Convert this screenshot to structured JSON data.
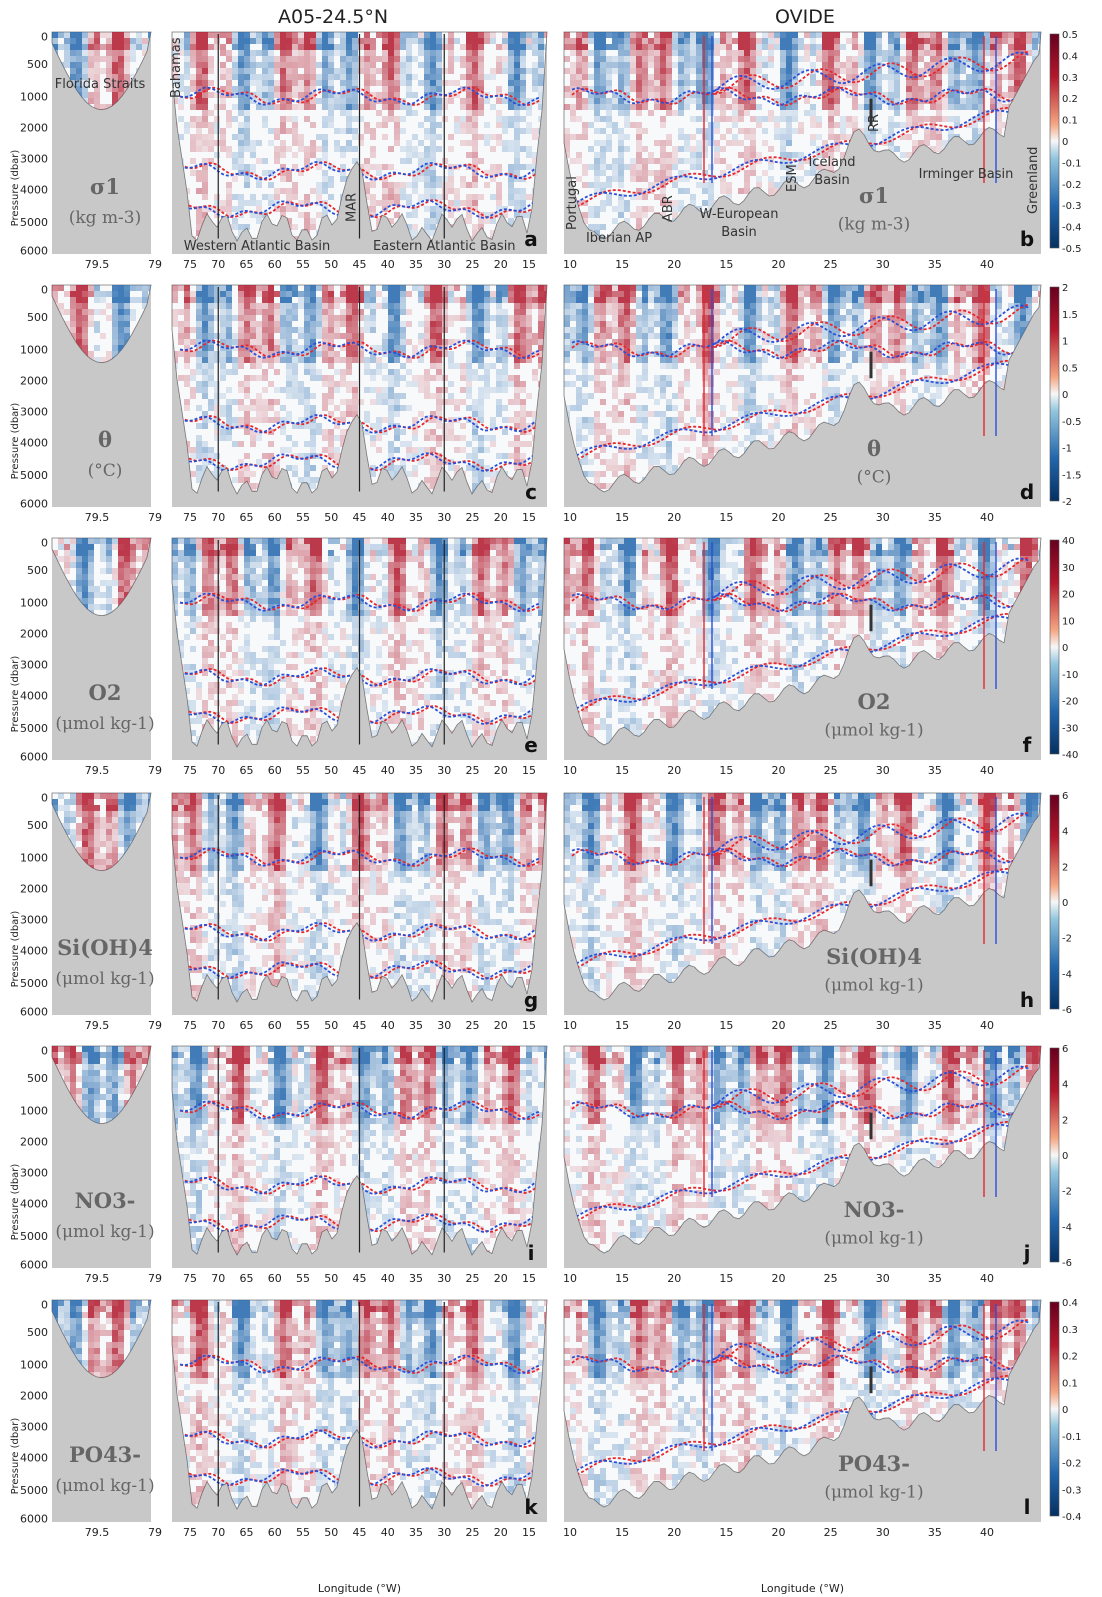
{
  "titles": {
    "left": "A05-24.5°N",
    "right": "OVIDE"
  },
  "axis_label": "Pressure (dbar)",
  "x_axis_title": "Longitude (°W)",
  "ticks": {
    "pressure": [
      "0",
      "500",
      "1000",
      "2000",
      "3000",
      "4000",
      "5000",
      "6000"
    ],
    "florida": [
      "79.5",
      "79"
    ],
    "a05": [
      "75",
      "70",
      "65",
      "60",
      "55",
      "50",
      "45",
      "40",
      "35",
      "30",
      "25",
      "20",
      "15"
    ],
    "ovide": [
      "10",
      "15",
      "20",
      "15",
      "20",
      "25",
      "30",
      "35",
      "40"
    ]
  },
  "annotations": {
    "florida": "Florida Straits",
    "bahamas": "Bahamas",
    "mar": "MAR",
    "western": "Western Atlantic Basin",
    "eastern": "Eastern Atlantic Basin",
    "portugal": "Portugal",
    "iberian": "Iberian AP",
    "abr": "ABR",
    "weuro": "W-European",
    "weuro2": "Basin",
    "esm": "ESM",
    "iceland": "Iceland",
    "iceland2": "Basin",
    "rr": "RR",
    "irminger": "Irminger Basin",
    "greenland": "Greenland"
  },
  "rows": [
    {
      "letter_a05": "a",
      "letter_ovide": "b",
      "var": "σ1",
      "unit": "(kg m-3)",
      "colorbar": [
        "0.5",
        "0.4",
        "0.3",
        "0.2",
        "0.1",
        "0",
        "-0.1",
        "-0.2",
        "-0.3",
        "-0.4",
        "-0.5"
      ]
    },
    {
      "letter_a05": "c",
      "letter_ovide": "d",
      "var": "θ",
      "unit": "(°C)",
      "colorbar": [
        "2",
        "1.5",
        "1",
        "0.5",
        "0",
        "-0.5",
        "-1",
        "-1.5",
        "-2"
      ]
    },
    {
      "letter_a05": "e",
      "letter_ovide": "f",
      "var": "O2",
      "unit": "(μmol kg-1)",
      "colorbar": [
        "40",
        "30",
        "20",
        "10",
        "0",
        "-10",
        "-20",
        "-30",
        "-40"
      ]
    },
    {
      "letter_a05": "g",
      "letter_ovide": "h",
      "var": "Si(OH)4",
      "unit": "(μmol kg-1)",
      "colorbar": [
        "6",
        "4",
        "2",
        "0",
        "-2",
        "-4",
        "-6"
      ]
    },
    {
      "letter_a05": "i",
      "letter_ovide": "j",
      "var": "NO3-",
      "unit": "(μmol kg-1)",
      "colorbar": [
        "6",
        "4",
        "2",
        "0",
        "-2",
        "-4",
        "-6"
      ]
    },
    {
      "letter_a05": "k",
      "letter_ovide": "l",
      "var": "PO43-",
      "unit": "(μmol kg-1)",
      "colorbar": [
        "0.4",
        "0.3",
        "0.2",
        "0.1",
        "0",
        "-0.1",
        "-0.2",
        "-0.3",
        "-0.4"
      ]
    }
  ],
  "colors": {
    "positive": "#b2182b",
    "negative": "#2166ac",
    "bathymetry": "#c8c8c8",
    "contour_red": "#e8262b",
    "contour_blue": "#2a4fd8"
  },
  "chart_data": {
    "type": "heatmap",
    "title": "",
    "panels": "6 variables × 3 sections (Florida Straits, A05-24.5°N, OVIDE)",
    "ylim": [
      6000,
      0
    ],
    "isopycnal_depths_dbar": [
      1000,
      3400,
      4600
    ],
    "section_markers_a05_lon": [
      70,
      45,
      30
    ]
  }
}
